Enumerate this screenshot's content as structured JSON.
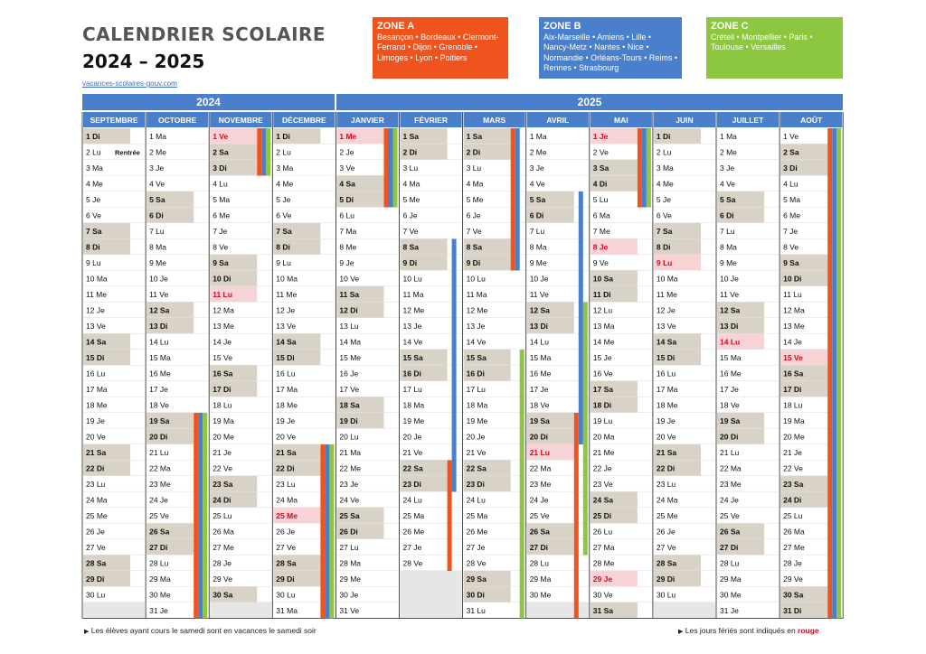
{
  "header": {
    "title": "CALENDRIER SCOLAIRE",
    "years": "2024 – 2025",
    "link": "vacances-scolaires-gouv.com"
  },
  "zones": [
    {
      "name": "ZONE A",
      "cities": "Besançon • Bordeaux • Clermont-Ferrand • Dijon • Grenoble • Limoges • Lyon • Poitiers",
      "color": "#f0541e"
    },
    {
      "name": "ZONE B",
      "cities": "Aix-Marseille • Amiens • Lille • Nancy-Metz • Nantes • Nice • Normandie • Orléans-Tours • Reims • Rennes • Strasbourg",
      "color": "#4a7fcb"
    },
    {
      "name": "ZONE C",
      "cities": "Créteil • Montpellier • Paris • Toulouse • Versailles",
      "color": "#8dc63f"
    }
  ],
  "year_bars": [
    "2024",
    "2025"
  ],
  "day_abbr": [
    "Di",
    "Lu",
    "Ma",
    "Me",
    "Je",
    "Ve",
    "Sa"
  ],
  "rentree_label": "Rentrée",
  "months": [
    {
      "name": "SEPTEMBRE",
      "year": 2024,
      "month": 9,
      "days": 30
    },
    {
      "name": "OCTOBRE",
      "year": 2024,
      "month": 10,
      "days": 31
    },
    {
      "name": "NOVEMBRE",
      "year": 2024,
      "month": 11,
      "days": 30
    },
    {
      "name": "DÉCEMBRE",
      "year": 2024,
      "month": 12,
      "days": 31
    },
    {
      "name": "JANVIER",
      "year": 2025,
      "month": 1,
      "days": 31
    },
    {
      "name": "FÉVRIER",
      "year": 2025,
      "month": 2,
      "days": 28
    },
    {
      "name": "MARS",
      "year": 2025,
      "month": 3,
      "days": 31
    },
    {
      "name": "AVRIL",
      "year": 2025,
      "month": 4,
      "days": 30
    },
    {
      "name": "MAI",
      "year": 2025,
      "month": 5,
      "days": 31
    },
    {
      "name": "JUIN",
      "year": 2025,
      "month": 6,
      "days": 30
    },
    {
      "name": "JUILLET",
      "year": 2025,
      "month": 7,
      "days": 31
    },
    {
      "name": "AOÛT",
      "year": 2025,
      "month": 8,
      "days": 31
    }
  ],
  "holidays": [
    {
      "month": 11,
      "day": 1
    },
    {
      "month": 11,
      "day": 11
    },
    {
      "month": 12,
      "day": 25
    },
    {
      "month": 1,
      "day": 1
    },
    {
      "month": 4,
      "day": 21
    },
    {
      "month": 5,
      "day": 1
    },
    {
      "month": 5,
      "day": 8
    },
    {
      "month": 5,
      "day": 29
    },
    {
      "month": 6,
      "day": 9
    },
    {
      "month": 7,
      "day": 14
    },
    {
      "month": 8,
      "day": 15
    }
  ],
  "vacation_bars": [
    {
      "zone": "A",
      "col": 1,
      "from": 19,
      "to": 31
    },
    {
      "zone": "B",
      "col": 1,
      "from": 19,
      "to": 31
    },
    {
      "zone": "C",
      "col": 1,
      "from": 19,
      "to": 31
    },
    {
      "zone": "A",
      "col": 2,
      "from": 1,
      "to": 3
    },
    {
      "zone": "B",
      "col": 2,
      "from": 1,
      "to": 3
    },
    {
      "zone": "C",
      "col": 2,
      "from": 1,
      "to": 3
    },
    {
      "zone": "A",
      "col": 3,
      "from": 21,
      "to": 31
    },
    {
      "zone": "B",
      "col": 3,
      "from": 21,
      "to": 31
    },
    {
      "zone": "C",
      "col": 3,
      "from": 21,
      "to": 31
    },
    {
      "zone": "A",
      "col": 4,
      "from": 1,
      "to": 5
    },
    {
      "zone": "B",
      "col": 4,
      "from": 1,
      "to": 5
    },
    {
      "zone": "C",
      "col": 4,
      "from": 1,
      "to": 5
    },
    {
      "zone": "B",
      "col": 5,
      "from": 8,
      "to": 23
    },
    {
      "zone": "A",
      "col": 5,
      "from": 22,
      "to": 28
    },
    {
      "zone": "A",
      "col": 6,
      "from": 1,
      "to": 9
    },
    {
      "zone": "B",
      "col": 6,
      "from": 1,
      "to": 9
    },
    {
      "zone": "C",
      "col": 6,
      "from": 15,
      "to": 31
    },
    {
      "zone": "B",
      "col": 7,
      "from": 5,
      "to": 20
    },
    {
      "zone": "C",
      "col": 7,
      "from": 12,
      "to": 27
    },
    {
      "zone": "A",
      "col": 7,
      "from": 19,
      "to": 31
    },
    {
      "zone": "A",
      "col": 8,
      "from": 1,
      "to": 5
    },
    {
      "zone": "B",
      "col": 8,
      "from": 1,
      "to": 5
    },
    {
      "zone": "C",
      "col": 8,
      "from": 1,
      "to": 5
    },
    {
      "zone": "A",
      "col": 11,
      "from": 1,
      "to": 31
    },
    {
      "zone": "B",
      "col": 11,
      "from": 1,
      "to": 31
    },
    {
      "zone": "C",
      "col": 11,
      "from": 1,
      "to": 31
    }
  ],
  "footer": {
    "left": "Les élèves ayant cours le samedi sont en vacances le samedi soir",
    "right_prefix": "Les jours fériés sont indiqués en",
    "right_red": "rouge"
  },
  "colors": {
    "zoneA": "#f0541e",
    "zoneB": "#4a7fcb",
    "zoneC": "#8dc63f",
    "weekend": "#d9d2c7",
    "holiday": "#f7d3d6",
    "holiday_text": "#e2001a",
    "header_blue": "#4a7fcb"
  }
}
